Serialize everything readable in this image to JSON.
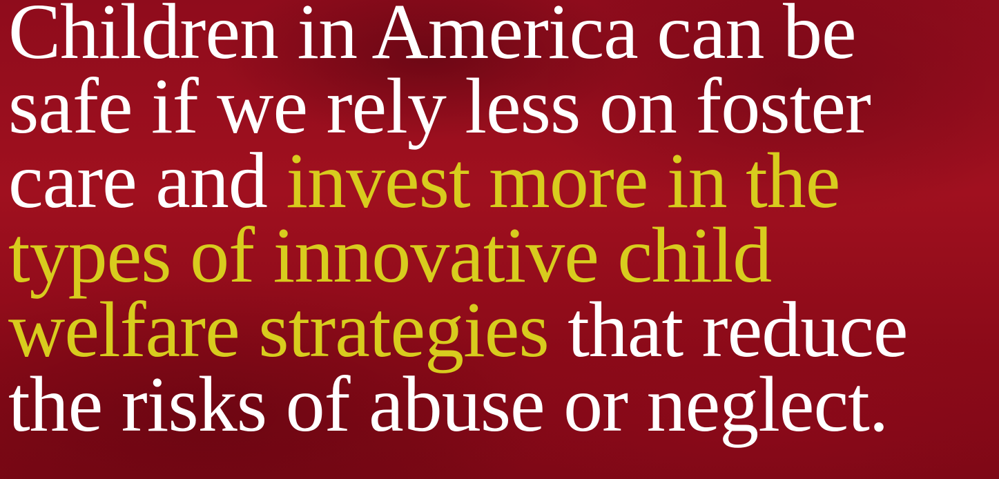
{
  "headline": {
    "parts": [
      "Children in America can be safe if we rely less on foster care and",
      "invest more in the types of innovative child welfare strategies",
      "that reduce the risks of abuse or neglect."
    ]
  }
}
